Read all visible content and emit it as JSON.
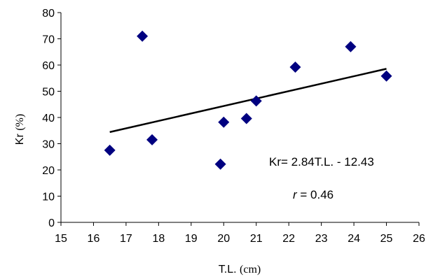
{
  "chart_data": {
    "type": "scatter",
    "xlabel": "T.L.",
    "xlabel_unit": "(cm)",
    "ylabel": "Kr",
    "ylabel_unit": "(%)",
    "xlim": [
      15,
      26
    ],
    "ylim": [
      0,
      80
    ],
    "xticks": [
      15,
      16,
      17,
      18,
      19,
      20,
      21,
      22,
      23,
      24,
      25,
      26
    ],
    "yticks": [
      0,
      10,
      20,
      30,
      40,
      50,
      60,
      70,
      80
    ],
    "grid": false,
    "legend": "none",
    "series": [
      {
        "marker": "diamond",
        "color": "#000080",
        "points": [
          {
            "x": 16.5,
            "y": 27.5
          },
          {
            "x": 17.5,
            "y": 71
          },
          {
            "x": 17.8,
            "y": 31.5
          },
          {
            "x": 19.9,
            "y": 22.2
          },
          {
            "x": 20.0,
            "y": 38.2
          },
          {
            "x": 20.7,
            "y": 39.6
          },
          {
            "x": 21.0,
            "y": 46.3
          },
          {
            "x": 22.2,
            "y": 59.2
          },
          {
            "x": 23.9,
            "y": 67
          },
          {
            "x": 25.0,
            "y": 55.8
          }
        ]
      }
    ],
    "trendline": {
      "x_from": 16.5,
      "x_to": 25.0,
      "slope": 2.84,
      "intercept": -12.43,
      "color": "#000000"
    },
    "annotations": {
      "equation": "Kr= 2.84T.L. - 12.43",
      "r_symbol": "r",
      "r_value": " = 0.46"
    }
  }
}
